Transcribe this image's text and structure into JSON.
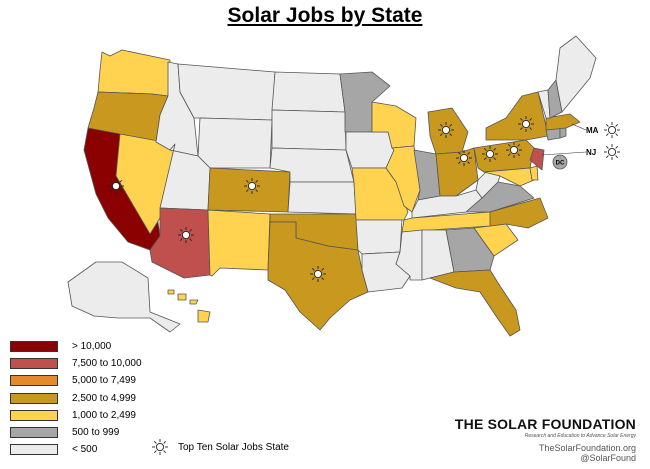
{
  "title": "Solar Jobs by State",
  "colors": {
    "gt10000": "#8b0000",
    "7500_10000": "#c0504d",
    "5000_7499": "#e38a2f",
    "2500_4999": "#c9981e",
    "1000_2499": "#ffd34f",
    "500_999": "#a6a6a6",
    "lt500": "#ececec",
    "border": "#555555"
  },
  "legend": [
    {
      "label": "> 10,000",
      "color": "#8b0000"
    },
    {
      "label": "7,500 to 10,000",
      "color": "#c0504d"
    },
    {
      "label": "5,000 to 7,499",
      "color": "#e38a2f"
    },
    {
      "label": "2,500 to 4,999",
      "color": "#c9981e"
    },
    {
      "label": "1,000 to 2,499",
      "color": "#ffd34f"
    },
    {
      "label": "500 to 999",
      "color": "#a6a6a6"
    },
    {
      "label": "< 500",
      "color": "#ececec"
    }
  ],
  "top_ten_label": "Top Ten Solar Jobs State",
  "callouts": {
    "ma": "MA",
    "nj": "NJ",
    "dc": "DC"
  },
  "brand": {
    "name": "THE SOLAR FOUNDATION",
    "tagline": "Research and Education to Advance Solar Energy",
    "url": "TheSolarFoundation.org",
    "handle": "@SolarFound"
  }
}
